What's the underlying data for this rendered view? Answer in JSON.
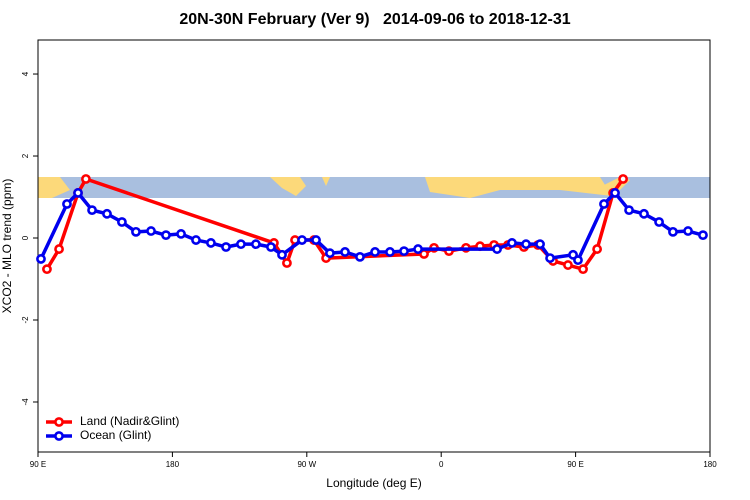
{
  "chart_data": {
    "type": "line",
    "title": "20N-30N February (Ver 9)   2014-09-06 to 2018-12-31",
    "x_label": "Longitude (deg E)",
    "y_label": "XCO2 - MLO trend (ppm)",
    "xlim": [
      90,
      540
    ],
    "xticks": [
      {
        "value": 90,
        "label": "90 E"
      },
      {
        "value": 180,
        "label": "180"
      },
      {
        "value": 270,
        "label": "90 W"
      },
      {
        "value": 360,
        "label": "0"
      },
      {
        "value": 450,
        "label": "90 E"
      },
      {
        "value": 540,
        "label": "180"
      }
    ],
    "ylim": [
      -5.22,
      4.83
    ],
    "yticks": [
      -4,
      -2,
      0,
      2,
      4
    ],
    "legend": "bottomleft",
    "series": [
      {
        "name": "Land (Nadir&Glint)",
        "color": "#ff0000",
        "x": [
          96.0,
          104.1,
          116.8,
          122.1,
          248.0,
          256.7,
          262.1,
          274.8,
          282.9,
          348.5,
          355.2,
          365.2,
          376.6,
          386.0,
          395.4,
          404.7,
          415.4,
          424.8,
          434.9,
          444.9,
          455.0,
          464.4,
          475.1,
          481.8
        ],
        "values": [
          -0.76,
          -0.27,
          1.1,
          1.44,
          -0.12,
          -0.61,
          -0.05,
          -0.05,
          -0.49,
          -0.39,
          -0.24,
          -0.32,
          -0.24,
          -0.2,
          -0.17,
          -0.17,
          -0.22,
          -0.17,
          -0.56,
          -0.66,
          -0.76,
          -0.27,
          1.1,
          1.44
        ]
      },
      {
        "name": "Ocean (Glint)",
        "color": "#0000ee",
        "x": [
          92.0,
          109.4,
          116.8,
          126.2,
          136.2,
          146.2,
          155.6,
          165.7,
          175.7,
          185.8,
          195.8,
          205.8,
          215.9,
          225.9,
          235.9,
          246.0,
          253.4,
          266.8,
          276.2,
          285.5,
          295.6,
          305.6,
          315.7,
          325.7,
          335.1,
          344.5,
          397.4,
          407.4,
          416.8,
          426.2,
          432.9,
          448.3,
          451.6,
          469.0,
          476.4,
          485.8,
          495.8,
          505.9,
          515.2,
          525.3,
          535.3
        ],
        "values": [
          -0.51,
          0.83,
          1.1,
          0.68,
          0.59,
          0.39,
          0.15,
          0.17,
          0.07,
          0.1,
          -0.05,
          -0.12,
          -0.22,
          -0.15,
          -0.15,
          -0.22,
          -0.41,
          -0.05,
          -0.05,
          -0.37,
          -0.34,
          -0.46,
          -0.34,
          -0.34,
          -0.32,
          -0.27,
          -0.27,
          -0.12,
          -0.15,
          -0.15,
          -0.49,
          -0.41,
          -0.54,
          0.83,
          1.1,
          0.68,
          0.59,
          0.39,
          0.15,
          0.17,
          0.07
        ]
      }
    ]
  }
}
